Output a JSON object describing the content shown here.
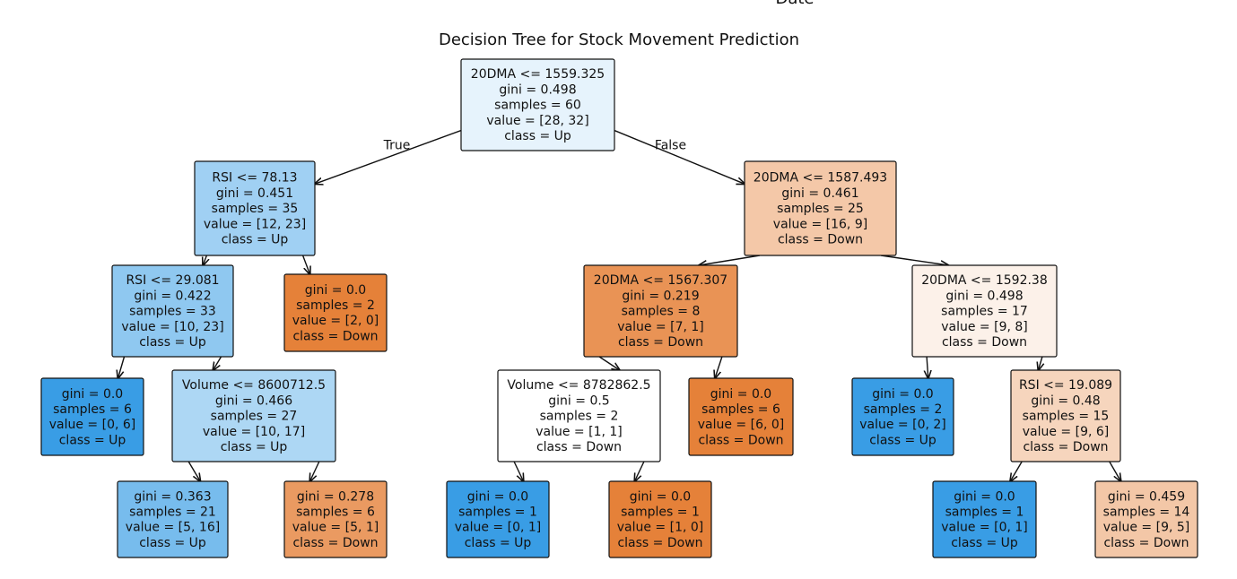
{
  "figure": {
    "top_cut_label": "Date",
    "title": "Decision Tree for Stock Movement Prediction",
    "edge_labels": {
      "true": "True",
      "false": "False"
    }
  },
  "colors": {
    "up": "#399de5",
    "down": "#e58139",
    "white": "#ffffff"
  },
  "tree": {
    "nodes": [
      {
        "id": "root",
        "lines": [
          "20DMA <= 1559.325",
          "gini = 0.498",
          "samples = 60",
          "value = [28, 32]",
          "class = Up"
        ],
        "klass": "Up",
        "purity": 0.125
      },
      {
        "id": "L",
        "lines": [
          "RSI <= 78.13",
          "gini = 0.451",
          "samples = 35",
          "value = [12, 23]",
          "class = Up"
        ],
        "klass": "Up",
        "purity": 0.478
      },
      {
        "id": "R",
        "lines": [
          "20DMA <= 1587.493",
          "gini = 0.461",
          "samples = 25",
          "value = [16, 9]",
          "class = Down"
        ],
        "klass": "Down",
        "purity": 0.438
      },
      {
        "id": "LL",
        "lines": [
          "RSI <= 29.081",
          "gini = 0.422",
          "samples = 33",
          "value = [10, 23]",
          "class = Up"
        ],
        "klass": "Up",
        "purity": 0.565
      },
      {
        "id": "LR",
        "lines": [
          "gini = 0.0",
          "samples = 2",
          "value = [2, 0]",
          "class = Down"
        ],
        "klass": "Down",
        "purity": 1.0
      },
      {
        "id": "RL",
        "lines": [
          "20DMA <= 1567.307",
          "gini = 0.219",
          "samples = 8",
          "value = [7, 1]",
          "class = Down"
        ],
        "klass": "Down",
        "purity": 0.857
      },
      {
        "id": "RR",
        "lines": [
          "20DMA <= 1592.38",
          "gini = 0.498",
          "samples = 17",
          "value = [9, 8]",
          "class = Down"
        ],
        "klass": "Down",
        "purity": 0.111
      },
      {
        "id": "LLL",
        "lines": [
          "gini = 0.0",
          "samples = 6",
          "value = [0, 6]",
          "class = Up"
        ],
        "klass": "Up",
        "purity": 1.0
      },
      {
        "id": "LLR",
        "lines": [
          "Volume <= 8600712.5",
          "gini = 0.466",
          "samples = 27",
          "value = [10, 17]",
          "class = Up"
        ],
        "klass": "Up",
        "purity": 0.412
      },
      {
        "id": "RLL",
        "lines": [
          "Volume <= 8782862.5",
          "gini = 0.5",
          "samples = 2",
          "value = [1, 1]",
          "class = Down"
        ],
        "klass": "Down",
        "purity": 0.0
      },
      {
        "id": "RLR",
        "lines": [
          "gini = 0.0",
          "samples = 6",
          "value = [6, 0]",
          "class = Down"
        ],
        "klass": "Down",
        "purity": 1.0
      },
      {
        "id": "RRL",
        "lines": [
          "gini = 0.0",
          "samples = 2",
          "value = [0, 2]",
          "class = Up"
        ],
        "klass": "Up",
        "purity": 1.0
      },
      {
        "id": "RRR",
        "lines": [
          "RSI <= 19.089",
          "gini = 0.48",
          "samples = 15",
          "value = [9, 6]",
          "class = Down"
        ],
        "klass": "Down",
        "purity": 0.333
      },
      {
        "id": "LLRL",
        "lines": [
          "gini = 0.363",
          "samples = 21",
          "value = [5, 16]",
          "class = Up"
        ],
        "klass": "Up",
        "purity": 0.688
      },
      {
        "id": "LLRR",
        "lines": [
          "gini = 0.278",
          "samples = 6",
          "value = [5, 1]",
          "class = Down"
        ],
        "klass": "Down",
        "purity": 0.8
      },
      {
        "id": "RLLL",
        "lines": [
          "gini = 0.0",
          "samples = 1",
          "value = [0, 1]",
          "class = Up"
        ],
        "klass": "Up",
        "purity": 1.0
      },
      {
        "id": "RLLR",
        "lines": [
          "gini = 0.0",
          "samples = 1",
          "value = [1, 0]",
          "class = Down"
        ],
        "klass": "Down",
        "purity": 1.0
      },
      {
        "id": "RRRL",
        "lines": [
          "gini = 0.0",
          "samples = 1",
          "value = [0, 1]",
          "class = Up"
        ],
        "klass": "Up",
        "purity": 1.0
      },
      {
        "id": "RRRR",
        "lines": [
          "gini = 0.459",
          "samples = 14",
          "value = [9, 5]",
          "class = Down"
        ],
        "klass": "Down",
        "purity": 0.444
      }
    ],
    "edges": [
      {
        "from": "root",
        "to": "L",
        "label": "True"
      },
      {
        "from": "root",
        "to": "R",
        "label": "False"
      },
      {
        "from": "L",
        "to": "LL"
      },
      {
        "from": "L",
        "to": "LR"
      },
      {
        "from": "R",
        "to": "RL"
      },
      {
        "from": "R",
        "to": "RR"
      },
      {
        "from": "LL",
        "to": "LLL"
      },
      {
        "from": "LL",
        "to": "LLR"
      },
      {
        "from": "LLR",
        "to": "LLRL"
      },
      {
        "from": "LLR",
        "to": "LLRR"
      },
      {
        "from": "RL",
        "to": "RLL"
      },
      {
        "from": "RL",
        "to": "RLR"
      },
      {
        "from": "RLL",
        "to": "RLLL"
      },
      {
        "from": "RLL",
        "to": "RLLR"
      },
      {
        "from": "RR",
        "to": "RRL"
      },
      {
        "from": "RR",
        "to": "RRR"
      },
      {
        "from": "RRR",
        "to": "RRRL"
      },
      {
        "from": "RRR",
        "to": "RRRR"
      }
    ]
  }
}
